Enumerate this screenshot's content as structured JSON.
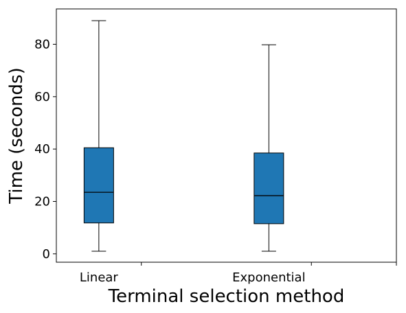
{
  "chart_data": {
    "type": "box",
    "title": "",
    "xlabel": "Terminal selection method",
    "ylabel": "Time (seconds)",
    "categories": [
      "Linear",
      "Exponential"
    ],
    "boxes": [
      {
        "category": "Linear",
        "whisker_low": 1,
        "q1": 11.8,
        "median": 23.5,
        "q3": 40.5,
        "whisker_high": 89
      },
      {
        "category": "Exponential",
        "whisker_low": 1,
        "q1": 11.5,
        "median": 22.2,
        "q3": 38.5,
        "whisker_high": 79.8
      }
    ],
    "y_ticks": [
      0,
      20,
      40,
      60,
      80
    ],
    "ylim": [
      -3.2,
      93.5
    ],
    "xlim": [
      0,
      2
    ],
    "x_tick_positions": [
      0.5,
      1.5,
      2
    ],
    "box_color": "#1f77b4",
    "grid": false,
    "legend": "none"
  }
}
